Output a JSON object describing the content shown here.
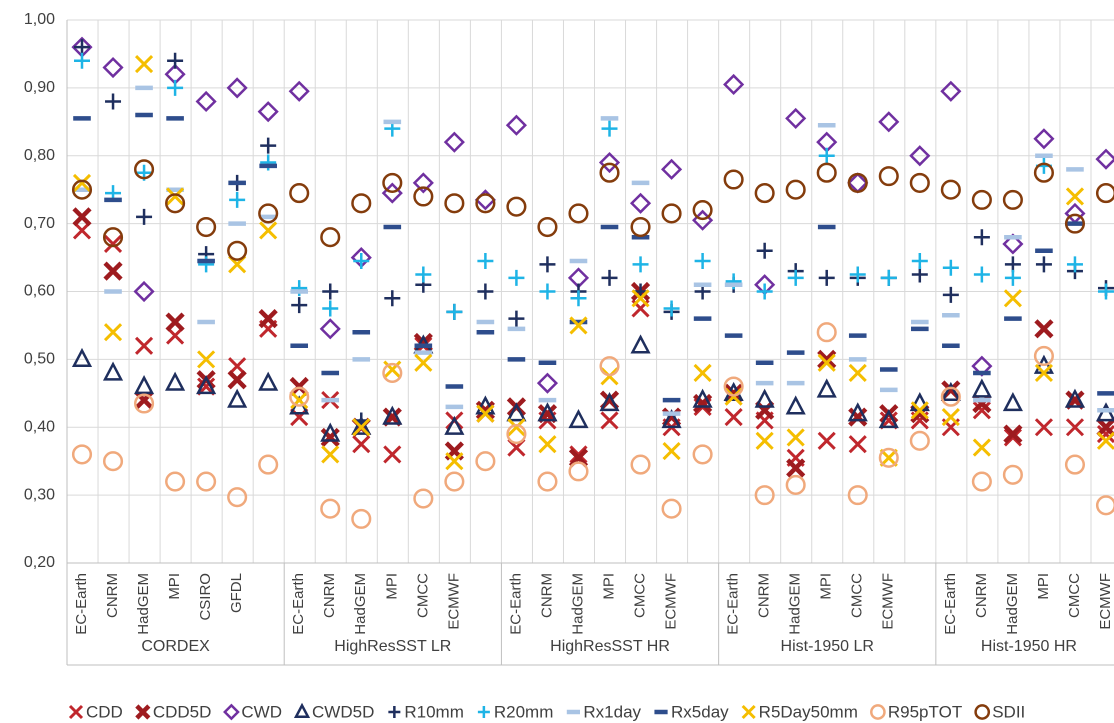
{
  "chart_data": {
    "type": "dot",
    "groups": [
      {
        "name": "CORDEX",
        "categories": [
          "EC-Earth",
          "CNRM",
          "HadGEM",
          "MPI",
          "CSIRO",
          "GFDL",
          null
        ]
      },
      {
        "name": "HighResSST LR",
        "categories": [
          "EC-Earth",
          "CNRM",
          "HadGEM",
          "MPI",
          "CMCC",
          "ECMWF",
          null
        ]
      },
      {
        "name": "HighResSST HR",
        "categories": [
          "EC-Earth",
          "CNRM",
          "HadGEM",
          "MPI",
          "CMCC",
          "ECMWF",
          null
        ]
      },
      {
        "name": "Hist-1950 LR",
        "categories": [
          "EC-Earth",
          "CNRM",
          "HadGEM",
          "MPI",
          "CMCC",
          "ECMWF",
          null
        ]
      },
      {
        "name": "Hist-1950 HR",
        "categories": [
          "EC-Earth",
          "CNRM",
          "HadGEM",
          "MPI",
          "CMCC",
          "ECMWF"
        ]
      }
    ],
    "ylim": [
      0.2,
      1.0
    ],
    "yticks": [
      {
        "value": 0.2,
        "label": "0,20"
      },
      {
        "value": 0.3,
        "label": "0,30"
      },
      {
        "value": 0.4,
        "label": "0,40"
      },
      {
        "value": 0.5,
        "label": "0,50"
      },
      {
        "value": 0.6,
        "label": "0,60"
      },
      {
        "value": 0.7,
        "label": "0,70"
      },
      {
        "value": 0.8,
        "label": "0,80"
      },
      {
        "value": 0.9,
        "label": "0,90"
      },
      {
        "value": 1.0,
        "label": "1,00"
      }
    ],
    "grid": true,
    "legend": "bottom",
    "series": [
      {
        "name": "CDD",
        "color": "#c0272d",
        "marker": "x",
        "values": [
          0.69,
          0.67,
          0.52,
          0.535,
          0.46,
          0.49,
          0.545,
          0.415,
          0.44,
          0.375,
          0.36,
          0.52,
          0.41,
          0.42,
          0.37,
          0.41,
          0.36,
          0.41,
          0.575,
          0.4,
          0.43,
          0.415,
          0.41,
          0.355,
          0.38,
          0.375,
          0.41,
          0.41,
          0.4,
          0.425,
          0.385,
          0.4,
          0.4,
          0.39
        ]
      },
      {
        "name": "CDD5D",
        "color": "#9e1b1f",
        "marker": "bold-x",
        "values": [
          0.71,
          0.63,
          0.44,
          0.555,
          0.47,
          0.47,
          0.56,
          0.46,
          0.385,
          0.4,
          0.415,
          0.525,
          0.365,
          0.425,
          0.43,
          0.42,
          0.355,
          0.44,
          0.6,
          0.415,
          0.435,
          0.45,
          0.425,
          0.34,
          0.5,
          0.415,
          0.42,
          0.42,
          0.455,
          0.435,
          0.39,
          0.545,
          0.44,
          0.4
        ]
      },
      {
        "name": "CWD",
        "color": "#7030a0",
        "marker": "diamond",
        "values": [
          0.96,
          0.93,
          0.6,
          0.92,
          0.88,
          0.9,
          0.865,
          0.895,
          0.545,
          0.65,
          0.745,
          0.76,
          0.82,
          0.735,
          0.845,
          0.465,
          0.62,
          0.79,
          0.73,
          0.78,
          0.705,
          0.905,
          0.61,
          0.855,
          0.82,
          0.76,
          0.85,
          0.8,
          0.895,
          0.49,
          0.67,
          0.825,
          0.715,
          0.795
        ]
      },
      {
        "name": "CWD5D",
        "color": "#1f2f5e",
        "marker": "triangle",
        "values": [
          0.5,
          0.48,
          0.46,
          0.465,
          0.46,
          0.44,
          0.465,
          0.43,
          0.39,
          0.4,
          0.415,
          0.52,
          0.4,
          0.43,
          0.42,
          0.42,
          0.41,
          0.435,
          0.52,
          0.41,
          0.44,
          0.45,
          0.44,
          0.43,
          0.455,
          0.42,
          0.41,
          0.435,
          0.45,
          0.455,
          0.435,
          0.49,
          0.44,
          0.42
        ]
      },
      {
        "name": "R10mm",
        "color": "#1f2f5e",
        "marker": "plus",
        "values": [
          0.96,
          0.88,
          0.71,
          0.94,
          0.655,
          0.76,
          0.815,
          0.58,
          0.6,
          0.41,
          0.59,
          0.61,
          0.57,
          0.6,
          0.56,
          0.64,
          0.6,
          0.62,
          0.6,
          0.57,
          0.6,
          0.61,
          0.66,
          0.63,
          0.62,
          0.62,
          0.62,
          0.625,
          0.595,
          0.68,
          0.64,
          0.64,
          0.63,
          0.605
        ]
      },
      {
        "name": "R20mm",
        "color": "#1eb4e6",
        "marker": "plus",
        "values": [
          0.94,
          0.745,
          0.775,
          0.9,
          0.64,
          0.735,
          0.79,
          0.605,
          0.575,
          0.645,
          0.84,
          0.625,
          0.57,
          0.645,
          0.62,
          0.6,
          0.59,
          0.84,
          0.64,
          0.575,
          0.645,
          0.615,
          0.6,
          0.62,
          0.8,
          0.625,
          0.62,
          0.645,
          0.635,
          0.625,
          0.62,
          0.785,
          0.64,
          0.6
        ]
      },
      {
        "name": "Rx1day",
        "color": "#a9c4e4",
        "marker": "dash",
        "values": [
          0.75,
          0.6,
          0.9,
          0.75,
          0.555,
          0.7,
          0.71,
          0.6,
          0.44,
          0.5,
          0.85,
          0.51,
          0.43,
          0.555,
          0.545,
          0.44,
          0.645,
          0.855,
          0.76,
          0.42,
          0.61,
          0.61,
          0.465,
          0.465,
          0.845,
          0.5,
          0.455,
          0.555,
          0.565,
          0.44,
          0.68,
          0.8,
          0.78,
          0.425
        ]
      },
      {
        "name": "Rx5day",
        "color": "#2e4d8c",
        "marker": "dash",
        "values": [
          0.855,
          0.735,
          0.86,
          0.855,
          0.645,
          0.76,
          0.785,
          0.52,
          0.48,
          0.54,
          0.695,
          0.52,
          0.46,
          0.54,
          0.5,
          0.495,
          0.555,
          0.695,
          0.68,
          0.44,
          0.56,
          0.535,
          0.495,
          0.51,
          0.695,
          0.535,
          0.485,
          0.545,
          0.52,
          0.48,
          0.56,
          0.66,
          0.7,
          0.45
        ]
      },
      {
        "name": "R5Day50mm",
        "color": "#f5be00",
        "marker": "x",
        "values": [
          0.76,
          0.54,
          0.935,
          0.74,
          0.5,
          0.64,
          0.69,
          0.44,
          0.36,
          0.4,
          0.485,
          0.495,
          0.35,
          0.42,
          0.4,
          0.375,
          0.55,
          0.475,
          0.59,
          0.365,
          0.48,
          0.445,
          0.38,
          0.385,
          0.495,
          0.48,
          0.355,
          0.425,
          0.415,
          0.37,
          0.59,
          0.48,
          0.74,
          0.38
        ]
      },
      {
        "name": "R95pTOT",
        "color": "#f0a97c",
        "marker": "circle",
        "values": [
          0.36,
          0.35,
          0.435,
          0.32,
          0.32,
          0.297,
          0.345,
          0.445,
          0.28,
          0.265,
          0.48,
          0.295,
          0.32,
          0.35,
          0.39,
          0.32,
          0.335,
          0.49,
          0.345,
          0.28,
          0.36,
          0.46,
          0.3,
          0.315,
          0.54,
          0.3,
          0.355,
          0.38,
          0.445,
          0.32,
          0.33,
          0.505,
          0.345,
          0.285
        ]
      },
      {
        "name": "SDII",
        "color": "#843c0c",
        "marker": "circle",
        "values": [
          0.75,
          0.68,
          0.78,
          0.73,
          0.695,
          0.66,
          0.715,
          0.745,
          0.68,
          0.73,
          0.76,
          0.74,
          0.73,
          0.73,
          0.725,
          0.695,
          0.715,
          0.775,
          0.695,
          0.715,
          0.72,
          0.765,
          0.745,
          0.75,
          0.775,
          0.76,
          0.77,
          0.76,
          0.75,
          0.735,
          0.735,
          0.775,
          0.7,
          0.745
        ]
      }
    ]
  }
}
